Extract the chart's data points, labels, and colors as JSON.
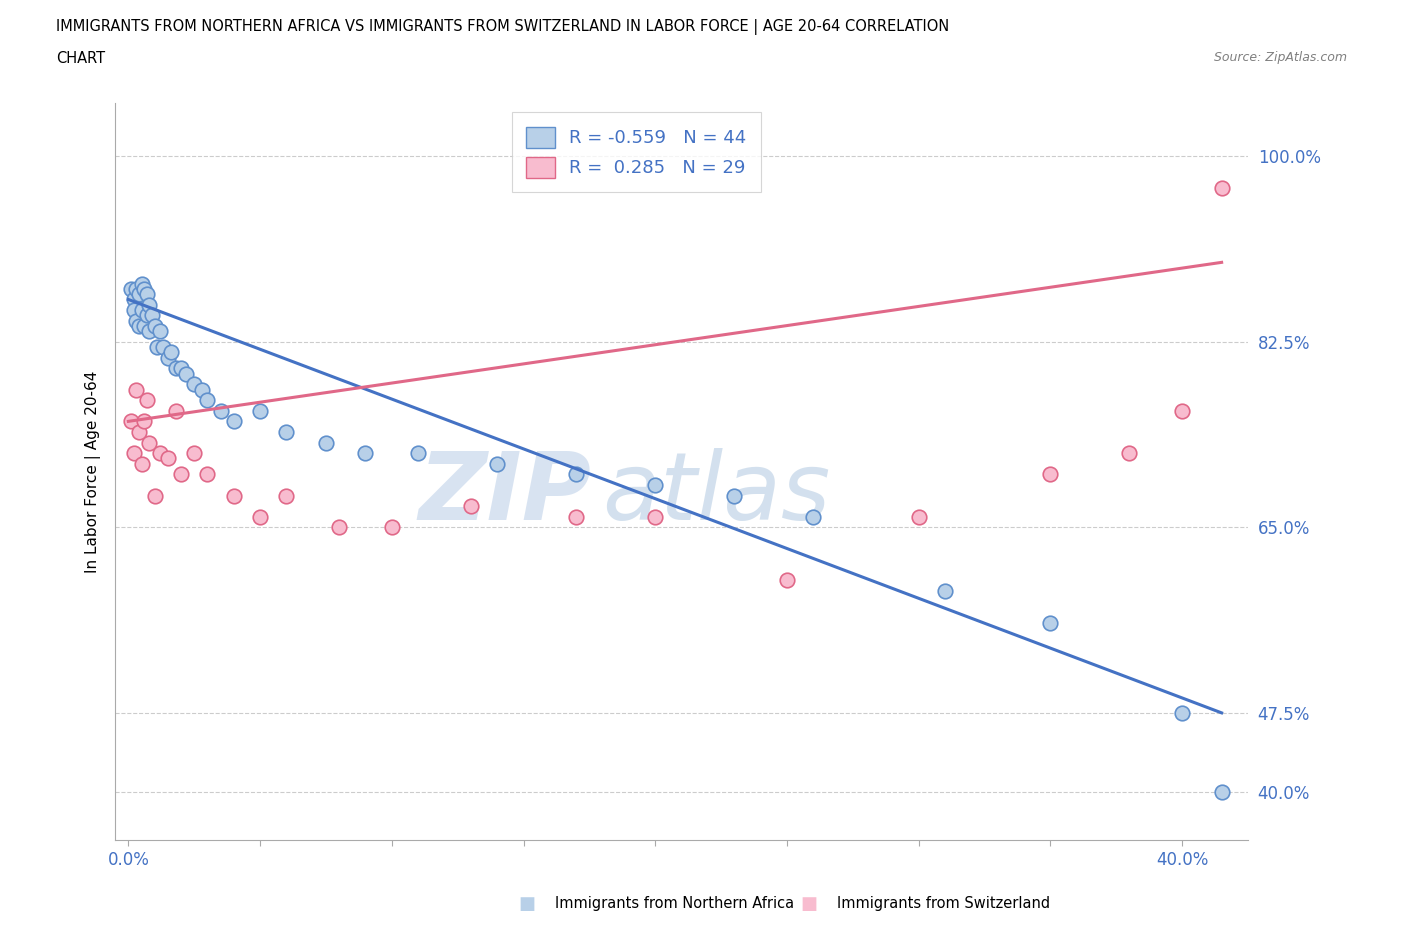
{
  "title_line1": "IMMIGRANTS FROM NORTHERN AFRICA VS IMMIGRANTS FROM SWITZERLAND IN LABOR FORCE | AGE 20-64 CORRELATION",
  "title_line2": "CHART",
  "source_text": "Source: ZipAtlas.com",
  "ylabel": "In Labor Force | Age 20-64",
  "blue_R": -0.559,
  "blue_N": 44,
  "pink_R": 0.285,
  "pink_N": 29,
  "blue_scatter_color": "#b8d0e8",
  "blue_scatter_edge": "#6090cc",
  "pink_scatter_color": "#f8bccf",
  "pink_scatter_edge": "#e06888",
  "blue_line_color": "#4472c4",
  "pink_line_color": "#e06888",
  "label_color": "#4472c4",
  "legend_label_blue": "Immigrants from Northern Africa",
  "legend_label_pink": "Immigrants from Switzerland",
  "watermark_text": "ZIP",
  "watermark_text2": "atlas",
  "xlim_min": -0.005,
  "xlim_max": 0.425,
  "ylim_min": 0.355,
  "ylim_max": 1.05,
  "yticks": [
    0.4,
    0.475,
    0.65,
    0.825,
    1.0
  ],
  "ytick_labels": [
    "40.0%",
    "47.5%",
    "65.0%",
    "82.5%",
    "100.0%"
  ],
  "xtick_vals": [
    0.0,
    0.05,
    0.1,
    0.15,
    0.2,
    0.25,
    0.3,
    0.35,
    0.4
  ],
  "xtick_labels": [
    "0.0%",
    "",
    "",
    "",
    "",
    "",
    "",
    "",
    "40.0%"
  ],
  "blue_x": [
    0.001,
    0.002,
    0.002,
    0.003,
    0.003,
    0.004,
    0.004,
    0.005,
    0.005,
    0.006,
    0.006,
    0.007,
    0.007,
    0.008,
    0.008,
    0.009,
    0.01,
    0.011,
    0.012,
    0.013,
    0.015,
    0.016,
    0.018,
    0.02,
    0.022,
    0.025,
    0.028,
    0.03,
    0.035,
    0.04,
    0.05,
    0.06,
    0.075,
    0.09,
    0.11,
    0.14,
    0.17,
    0.2,
    0.23,
    0.26,
    0.31,
    0.35,
    0.4,
    0.415
  ],
  "blue_y": [
    0.875,
    0.865,
    0.855,
    0.875,
    0.845,
    0.87,
    0.84,
    0.88,
    0.855,
    0.875,
    0.84,
    0.87,
    0.85,
    0.86,
    0.835,
    0.85,
    0.84,
    0.82,
    0.835,
    0.82,
    0.81,
    0.815,
    0.8,
    0.8,
    0.795,
    0.785,
    0.78,
    0.77,
    0.76,
    0.75,
    0.76,
    0.74,
    0.73,
    0.72,
    0.72,
    0.71,
    0.7,
    0.69,
    0.68,
    0.66,
    0.59,
    0.56,
    0.475,
    0.4
  ],
  "pink_x": [
    0.001,
    0.002,
    0.003,
    0.004,
    0.005,
    0.006,
    0.007,
    0.008,
    0.01,
    0.012,
    0.015,
    0.018,
    0.02,
    0.025,
    0.03,
    0.04,
    0.05,
    0.06,
    0.08,
    0.1,
    0.13,
    0.17,
    0.2,
    0.25,
    0.3,
    0.35,
    0.38,
    0.4,
    0.415
  ],
  "pink_y": [
    0.75,
    0.72,
    0.78,
    0.74,
    0.71,
    0.75,
    0.77,
    0.73,
    0.68,
    0.72,
    0.715,
    0.76,
    0.7,
    0.72,
    0.7,
    0.68,
    0.66,
    0.68,
    0.65,
    0.65,
    0.67,
    0.66,
    0.66,
    0.6,
    0.66,
    0.7,
    0.72,
    0.76,
    0.97
  ],
  "blue_line_x0": 0.0,
  "blue_line_x1": 0.415,
  "blue_line_y0": 0.865,
  "blue_line_y1": 0.475,
  "pink_line_x0": 0.0,
  "pink_line_x1": 0.415,
  "pink_line_y0": 0.75,
  "pink_line_y1": 0.9
}
